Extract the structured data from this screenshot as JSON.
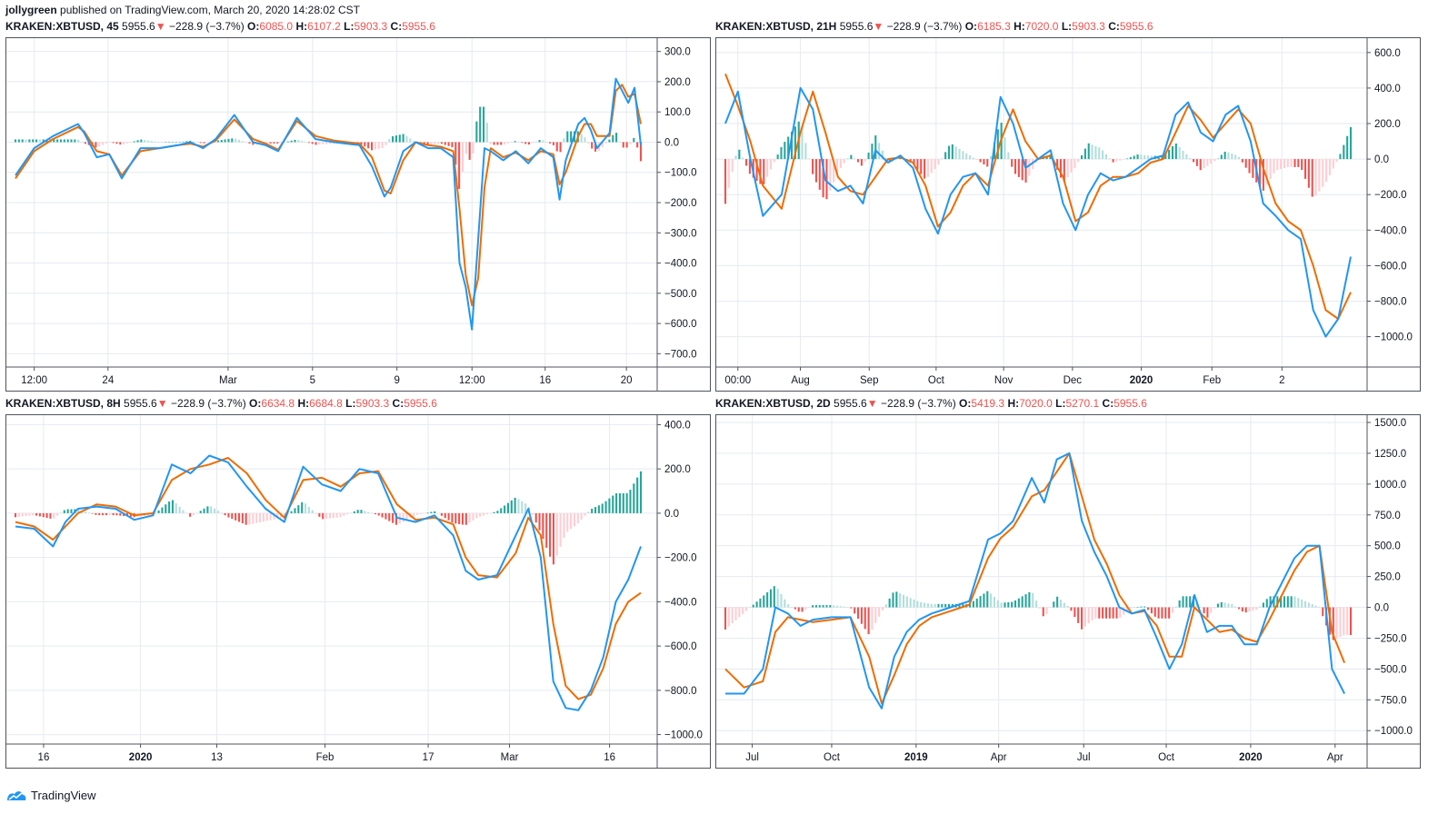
{
  "header": {
    "author": "jollygreen",
    "published_text": "published on TradingView.com, March 20, 2020 14:28:02 CST"
  },
  "footer": {
    "brand": "TradingView"
  },
  "colors": {
    "macd_line": "#2196f3",
    "signal_line": "#ef6c00",
    "hist_up_strong": "#26a69a",
    "hist_up_weak": "#b2dfdb",
    "hist_down_strong": "#ef5350",
    "hist_down_weak": "#ffcdd2",
    "grid": "#e6eaef",
    "axis_border": "#50535e"
  },
  "panels": [
    {
      "symbol": "KRAKEN:XBTUSD, 45",
      "last": "5955.6",
      "change": "−228.9 (−3.7%)",
      "o_label": "O:",
      "o": "6085.0",
      "h_label": "H:",
      "h": "6107.2",
      "l_label": "L:",
      "l": "5903.3",
      "c_label": "C:",
      "c": "5955.6"
    },
    {
      "symbol": "KRAKEN:XBTUSD, 21H",
      "last": "5955.6",
      "change": "−228.9 (−3.7%)",
      "o_label": "O:",
      "o": "6185.3",
      "h_label": "H:",
      "h": "7020.0",
      "l_label": "L:",
      "l": "5903.3",
      "c_label": "C:",
      "c": "5955.6"
    },
    {
      "symbol": "KRAKEN:XBTUSD, 8H",
      "last": "5955.6",
      "change": "−228.9 (−3.7%)",
      "o_label": "O:",
      "o": "6634.8",
      "h_label": "H:",
      "h": "6684.8",
      "l_label": "L:",
      "l": "5903.3",
      "c_label": "C:",
      "c": "5955.6"
    },
    {
      "symbol": "KRAKEN:XBTUSD, 2D",
      "last": "5955.6",
      "change": "−228.9 (−3.7%)",
      "o_label": "O:",
      "o": "5419.3",
      "h_label": "H:",
      "h": "7020.0",
      "l_label": "L:",
      "l": "5270.1",
      "c_label": "C:",
      "c": "5955.6"
    }
  ],
  "chart_data": [
    {
      "type": "line",
      "indicator": "MACD",
      "timeframe": "45",
      "ylim": [
        -720,
        320
      ],
      "y_ticks": [
        "300.0",
        "200.0",
        "100.0",
        "0.0",
        "−100.0",
        "−200.0",
        "−300.0",
        "−400.0",
        "−500.0",
        "−600.0",
        "−700.0"
      ],
      "y_tick_values": [
        300,
        200,
        100,
        0,
        -100,
        -200,
        -300,
        -400,
        -500,
        -600,
        -700
      ],
      "x_ticks": [
        "12:00",
        "24",
        "Mar",
        "5",
        "9",
        "12:00",
        "16",
        "20"
      ],
      "x_tick_pos": [
        0.03,
        0.148,
        0.34,
        0.475,
        0.61,
        0.73,
        0.847,
        0.977
      ],
      "x": [
        0,
        0.03,
        0.06,
        0.1,
        0.11,
        0.13,
        0.15,
        0.17,
        0.2,
        0.23,
        0.26,
        0.28,
        0.3,
        0.32,
        0.35,
        0.38,
        0.4,
        0.42,
        0.45,
        0.48,
        0.51,
        0.55,
        0.57,
        0.59,
        0.6,
        0.62,
        0.64,
        0.66,
        0.68,
        0.7,
        0.71,
        0.72,
        0.73,
        0.74,
        0.75,
        0.76,
        0.78,
        0.8,
        0.82,
        0.84,
        0.86,
        0.87,
        0.88,
        0.9,
        0.91,
        0.92,
        0.93,
        0.95,
        0.96,
        0.97,
        0.98,
        0.99,
        1.0
      ],
      "macd": [
        -110,
        -20,
        20,
        60,
        30,
        -50,
        -40,
        -120,
        -20,
        -20,
        -10,
        0,
        -20,
        10,
        90,
        0,
        -10,
        -30,
        80,
        10,
        0,
        -10,
        -80,
        -180,
        -150,
        -30,
        0,
        -20,
        -20,
        -50,
        -400,
        -480,
        -620,
        -320,
        -20,
        -30,
        -60,
        -30,
        -70,
        -20,
        -50,
        -190,
        -60,
        60,
        80,
        40,
        -20,
        30,
        210,
        170,
        130,
        180,
        -10
      ],
      "signal": [
        -120,
        -30,
        10,
        50,
        35,
        -30,
        -40,
        -110,
        -30,
        -20,
        -10,
        -5,
        -15,
        5,
        75,
        10,
        -5,
        -25,
        70,
        20,
        5,
        -5,
        -50,
        -160,
        -170,
        -60,
        0,
        -10,
        -15,
        -30,
        -220,
        -440,
        -540,
        -450,
        -150,
        -20,
        -50,
        -35,
        -60,
        -30,
        -40,
        -140,
        -100,
        20,
        60,
        60,
        20,
        20,
        170,
        190,
        150,
        160,
        60
      ],
      "hist_scale": 1
    },
    {
      "type": "line",
      "indicator": "MACD",
      "timeframe": "21H",
      "ylim": [
        -1130,
        640
      ],
      "y_ticks": [
        "600.0",
        "400.0",
        "200.0",
        "0.0",
        "−200.0",
        "−400.0",
        "−600.0",
        "−800.0",
        "−1000.0"
      ],
      "y_tick_values": [
        600,
        400,
        200,
        0,
        -200,
        -400,
        -600,
        -800,
        -1000
      ],
      "x_ticks": [
        "00:00",
        "Aug",
        "Sep",
        "Oct",
        "Nov",
        "Dec",
        "2020",
        "Feb",
        "2"
      ],
      "x_tick_pos": [
        0.02,
        0.12,
        0.23,
        0.337,
        0.445,
        0.555,
        0.665,
        0.778,
        0.89
      ],
      "x": [
        0,
        0.02,
        0.04,
        0.06,
        0.09,
        0.12,
        0.14,
        0.16,
        0.18,
        0.2,
        0.22,
        0.24,
        0.26,
        0.28,
        0.3,
        0.32,
        0.34,
        0.36,
        0.38,
        0.4,
        0.42,
        0.44,
        0.46,
        0.48,
        0.5,
        0.52,
        0.54,
        0.56,
        0.58,
        0.6,
        0.62,
        0.64,
        0.66,
        0.68,
        0.7,
        0.72,
        0.74,
        0.76,
        0.78,
        0.8,
        0.82,
        0.84,
        0.86,
        0.88,
        0.9,
        0.92,
        0.94,
        0.96,
        0.98,
        1.0
      ],
      "macd": [
        200,
        380,
        0,
        -320,
        -200,
        400,
        280,
        -120,
        -180,
        -150,
        -250,
        50,
        -20,
        20,
        -50,
        -280,
        -420,
        -200,
        -100,
        -80,
        -200,
        350,
        200,
        -50,
        0,
        50,
        -250,
        -400,
        -200,
        -80,
        -120,
        -100,
        -50,
        0,
        20,
        250,
        320,
        150,
        100,
        250,
        300,
        100,
        -250,
        -320,
        -400,
        -450,
        -850,
        -1000,
        -900,
        -550
      ],
      "signal": [
        480,
        300,
        100,
        -150,
        -280,
        150,
        380,
        150,
        -100,
        -180,
        -200,
        -100,
        0,
        10,
        -20,
        -150,
        -380,
        -300,
        -150,
        -80,
        -150,
        100,
        280,
        100,
        0,
        20,
        -100,
        -350,
        -300,
        -150,
        -100,
        -100,
        -80,
        -20,
        0,
        150,
        300,
        220,
        120,
        200,
        280,
        200,
        -50,
        -250,
        -350,
        -400,
        -600,
        -850,
        -900,
        -750
      ],
      "hist_scale": 1
    },
    {
      "type": "line",
      "indicator": "MACD",
      "timeframe": "8H",
      "ylim": [
        -1010,
        410
      ],
      "y_ticks": [
        "400.0",
        "200.0",
        "0.0",
        "−200.0",
        "−400.0",
        "−600.0",
        "−800.0",
        "−1000.0"
      ],
      "y_tick_values": [
        400,
        200,
        0,
        -200,
        -400,
        -600,
        -800,
        -1000
      ],
      "x_ticks": [
        "16",
        "2020",
        "13",
        "Feb",
        "17",
        "Mar",
        "16"
      ],
      "x_tick_pos": [
        0.045,
        0.2,
        0.322,
        0.495,
        0.66,
        0.79,
        0.95
      ],
      "x": [
        0,
        0.03,
        0.06,
        0.08,
        0.1,
        0.13,
        0.16,
        0.19,
        0.22,
        0.25,
        0.28,
        0.31,
        0.34,
        0.37,
        0.4,
        0.43,
        0.46,
        0.49,
        0.52,
        0.55,
        0.58,
        0.61,
        0.64,
        0.67,
        0.7,
        0.72,
        0.74,
        0.77,
        0.8,
        0.82,
        0.84,
        0.86,
        0.88,
        0.9,
        0.92,
        0.94,
        0.96,
        0.98,
        1.0
      ],
      "macd": [
        -60,
        -70,
        -150,
        -40,
        20,
        30,
        20,
        -30,
        -10,
        220,
        180,
        260,
        230,
        120,
        20,
        -40,
        210,
        130,
        100,
        200,
        180,
        -20,
        -40,
        -10,
        -100,
        -260,
        -300,
        -280,
        -100,
        20,
        -200,
        -760,
        -880,
        -890,
        -800,
        -650,
        -400,
        -300,
        -150
      ],
      "signal": [
        -40,
        -60,
        -120,
        -60,
        0,
        40,
        30,
        -10,
        0,
        150,
        200,
        220,
        250,
        180,
        60,
        -20,
        150,
        160,
        120,
        180,
        190,
        40,
        -30,
        -20,
        -50,
        -200,
        -280,
        -290,
        -180,
        -20,
        -100,
        -500,
        -780,
        -840,
        -820,
        -700,
        -500,
        -400,
        -360
      ],
      "hist_scale": 1
    },
    {
      "type": "line",
      "indicator": "MACD",
      "timeframe": "2D",
      "ylim": [
        -1050,
        1500
      ],
      "y_ticks": [
        "1500.0",
        "1250.0",
        "1000.0",
        "750.0",
        "500.0",
        "250.0",
        "0.0",
        "−250.0",
        "−500.0",
        "−750.0",
        "−1000.0"
      ],
      "y_tick_values": [
        1500,
        1250,
        1000,
        750,
        500,
        250,
        0,
        -250,
        -500,
        -750,
        -1000
      ],
      "x_ticks": [
        "Jul",
        "Oct",
        "2019",
        "Apr",
        "Jul",
        "Oct",
        "2020",
        "Apr"
      ],
      "x_tick_pos": [
        0.043,
        0.17,
        0.305,
        0.437,
        0.573,
        0.705,
        0.84,
        0.975
      ],
      "x": [
        0,
        0.03,
        0.06,
        0.08,
        0.1,
        0.12,
        0.14,
        0.17,
        0.2,
        0.23,
        0.25,
        0.27,
        0.29,
        0.31,
        0.33,
        0.36,
        0.39,
        0.42,
        0.44,
        0.46,
        0.49,
        0.51,
        0.53,
        0.55,
        0.57,
        0.59,
        0.61,
        0.63,
        0.65,
        0.67,
        0.69,
        0.71,
        0.73,
        0.75,
        0.77,
        0.79,
        0.81,
        0.83,
        0.85,
        0.87,
        0.89,
        0.91,
        0.93,
        0.95,
        0.97,
        0.99
      ],
      "macd": [
        -700,
        -700,
        -500,
        0,
        -50,
        -150,
        -100,
        -80,
        -80,
        -650,
        -820,
        -400,
        -200,
        -100,
        -50,
        0,
        50,
        550,
        600,
        700,
        1050,
        850,
        1200,
        1250,
        700,
        450,
        250,
        0,
        -50,
        -20,
        -250,
        -500,
        -300,
        100,
        -200,
        -150,
        -150,
        -300,
        -300,
        0,
        200,
        400,
        500,
        500,
        -500,
        -700
      ],
      "signal": [
        -500,
        -650,
        -600,
        -200,
        -80,
        -100,
        -120,
        -100,
        -80,
        -400,
        -780,
        -550,
        -300,
        -150,
        -80,
        -30,
        20,
        400,
        560,
        650,
        900,
        950,
        1100,
        1250,
        900,
        550,
        350,
        100,
        -50,
        -30,
        -150,
        -400,
        -400,
        0,
        -100,
        -200,
        -180,
        -250,
        -280,
        -100,
        100,
        300,
        450,
        500,
        -200,
        -450
      ],
      "hist_scale": 1
    }
  ]
}
